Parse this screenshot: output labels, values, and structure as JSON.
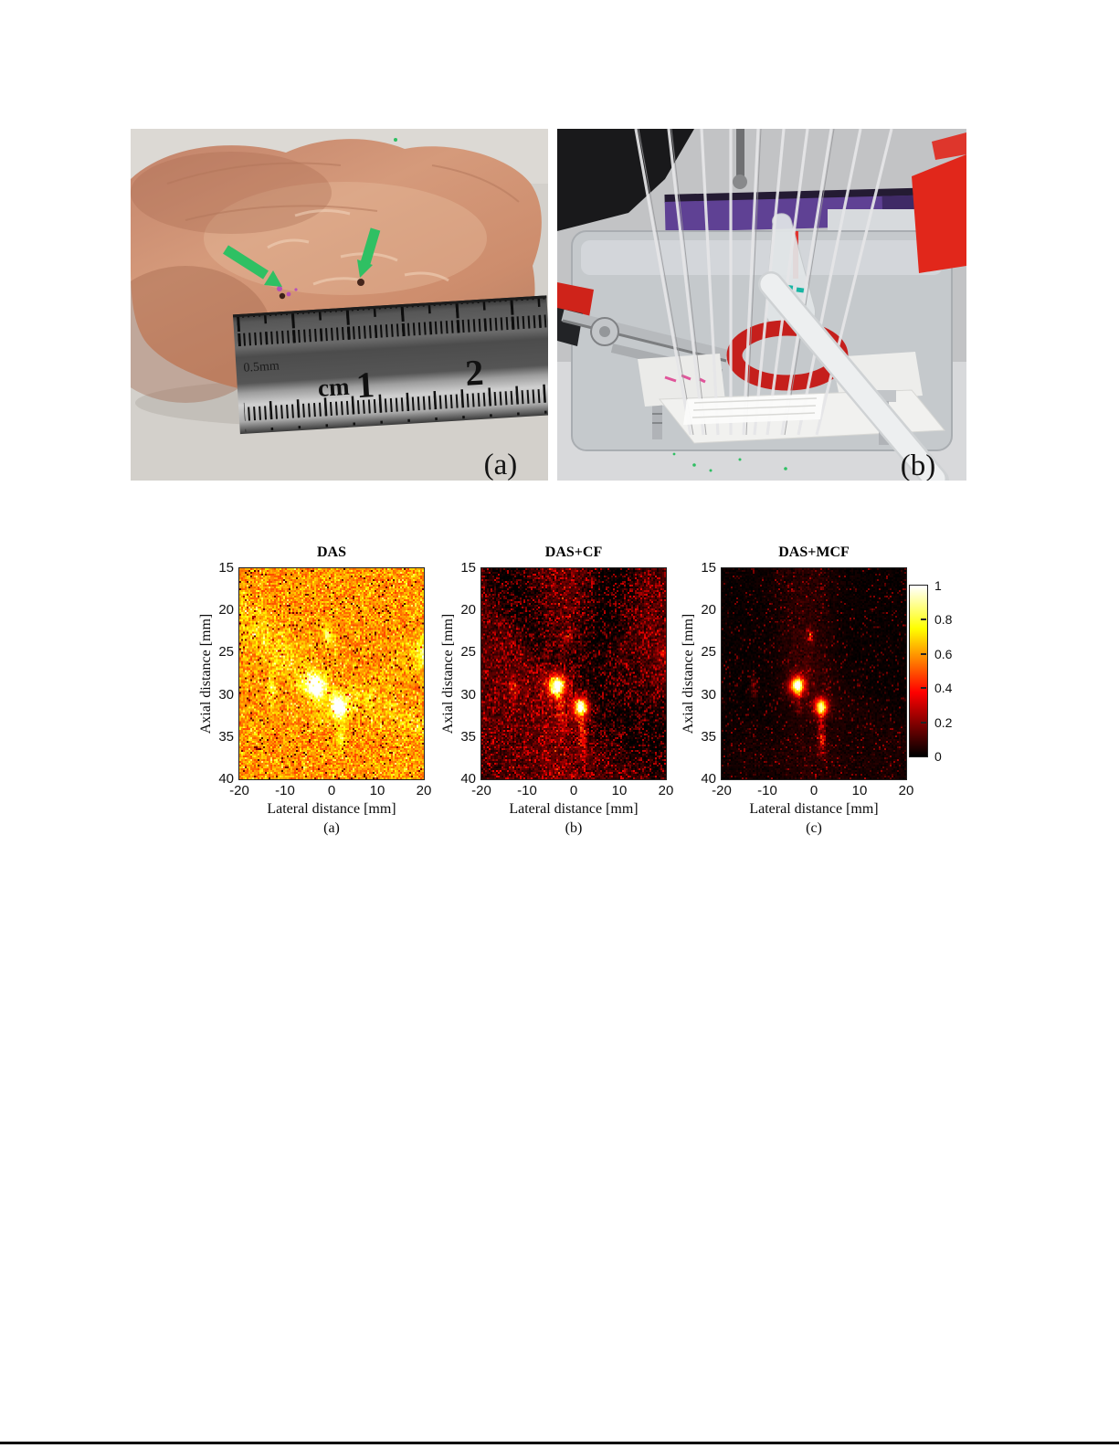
{
  "photos": {
    "a": {
      "label": "(a)"
    },
    "b": {
      "label": "(b)"
    }
  },
  "ruler": {
    "grad": "0.5mm",
    "unit": "cm",
    "n1": "1",
    "n2": "2"
  },
  "colorbar": {
    "min": 0,
    "max": 1,
    "ticks": [
      "1",
      "0.8",
      "0.6",
      "0.4",
      "0.2",
      "0"
    ]
  },
  "chart_data": [
    {
      "type": "heatmap",
      "title": "DAS",
      "sublabel": "(a)",
      "xlabel": "Lateral distance [mm]",
      "ylabel": "Axial distance [mm]",
      "xlim": [
        -20,
        20
      ],
      "ylim": [
        15,
        40
      ],
      "xticks": [
        -20,
        -10,
        0,
        10,
        20
      ],
      "yticks": [
        15,
        20,
        25,
        30,
        35,
        40
      ],
      "colormap": "hot",
      "seed": 11,
      "background": {
        "base": 0.58,
        "noise": 0.11,
        "sparkle": {
          "density": 0.22,
          "amp": 0.2
        },
        "dark": 0.04
      },
      "features": {
        "bands": [
          {
            "x1": -20,
            "y1": 19,
            "x2": -4.5,
            "y2": 28,
            "w": 1.5,
            "amp": 0.15,
            "speckle": true
          },
          {
            "x1": -20,
            "y1": 22,
            "x2": -5,
            "y2": 29.5,
            "w": 1.1,
            "amp": 0.09,
            "speckle": true
          },
          {
            "x1": -2,
            "y1": 30,
            "x2": 20,
            "y2": 33.5,
            "w": 1.4,
            "amp": 0.13,
            "speckle": true
          },
          {
            "x1": 2,
            "y1": 31,
            "x2": 20,
            "y2": 25.2,
            "w": 1.1,
            "amp": 0.08,
            "speckle": true
          },
          {
            "x1": -3.2,
            "y1": 29.5,
            "x2": -2.6,
            "y2": 33.5,
            "w": 0.7,
            "amp": 0.12,
            "speckle": true
          },
          {
            "x1": 1.6,
            "y1": 32,
            "x2": 2.2,
            "y2": 36.3,
            "w": 0.7,
            "amp": 0.13,
            "speckle": true
          }
        ],
        "blobs": [
          {
            "x": -3.5,
            "y": 28.9,
            "sx": 1.5,
            "sy": 1.0,
            "amp": 0.42
          },
          {
            "x": -3.5,
            "y": 28.9,
            "sx": 0.75,
            "sy": 0.5,
            "amp": 0.38
          },
          {
            "x": 1.6,
            "y": 31.4,
            "sx": 1.3,
            "sy": 0.95,
            "amp": 0.38
          },
          {
            "x": 1.6,
            "y": 31.4,
            "sx": 0.65,
            "sy": 0.48,
            "amp": 0.36
          },
          {
            "x": -0.9,
            "y": 23,
            "sx": 0.7,
            "sy": 0.75,
            "amp": 0.26
          },
          {
            "x": -13,
            "y": 29.3,
            "sx": 0.7,
            "sy": 1.2,
            "amp": 0.2
          },
          {
            "x": 20,
            "y": 25,
            "sx": 1.3,
            "sy": 1.3,
            "amp": 0.22
          },
          {
            "x": 2,
            "y": 35,
            "sx": 0.6,
            "sy": 0.8,
            "amp": 0.15
          }
        ]
      }
    },
    {
      "type": "heatmap",
      "title": "DAS+CF",
      "sublabel": "(b)",
      "xlabel": "Lateral distance [mm]",
      "ylabel": "Axial distance [mm]",
      "xlim": [
        -20,
        20
      ],
      "ylim": [
        15,
        40
      ],
      "xticks": [
        -20,
        -10,
        0,
        10,
        20
      ],
      "yticks": [
        15,
        20,
        25,
        30,
        35,
        40
      ],
      "colormap": "hot",
      "seed": 23,
      "background": {
        "base": 0.07,
        "noise": 0.06,
        "sparkle": {
          "density": 0.34,
          "amp": 0.26
        }
      },
      "features": {
        "bands": [
          {
            "x1": -4,
            "y1": 15,
            "x2": -3,
            "y2": 28,
            "w": 4.5,
            "amp": 0.13,
            "speckle": true
          },
          {
            "x1": 0,
            "y1": 30,
            "x2": -1,
            "y2": 40,
            "w": 5,
            "amp": 0.1,
            "speckle": true
          },
          {
            "x1": -20,
            "y1": 27,
            "x2": -6,
            "y2": 30,
            "w": 2.5,
            "amp": 0.08,
            "speckle": true
          },
          {
            "x1": 16,
            "y1": 19,
            "x2": 20,
            "y2": 27,
            "w": 3,
            "amp": 0.09,
            "speckle": true
          },
          {
            "x1": -20,
            "y1": 34,
            "x2": -4,
            "y2": 40,
            "w": 4,
            "amp": 0.06,
            "speckle": true
          },
          {
            "x1": -20,
            "y1": 19.5,
            "x2": -5,
            "y2": 28.5,
            "w": 1.1,
            "amp": 0.09,
            "speckle": true
          },
          {
            "x1": -3.2,
            "y1": 29.8,
            "x2": -2.6,
            "y2": 33.8,
            "w": 0.6,
            "amp": 0.3,
            "speckle": true
          },
          {
            "x1": 1.6,
            "y1": 32.2,
            "x2": 2.1,
            "y2": 36.6,
            "w": 0.6,
            "amp": 0.32,
            "speckle": true
          },
          {
            "x1": -14,
            "y1": 15,
            "x2": -4.5,
            "y2": 27,
            "w": 3.2,
            "amp": -0.09
          },
          {
            "x1": 9,
            "y1": 16,
            "x2": 1.5,
            "y2": 28,
            "w": 3.2,
            "amp": -0.09
          },
          {
            "x1": 5,
            "y1": 31.5,
            "x2": 19,
            "y2": 35,
            "w": 3,
            "amp": -0.08
          }
        ],
        "blobs": [
          {
            "x": -3.6,
            "y": 28.9,
            "sx": 2.0,
            "sy": 1.3,
            "amp": 0.25
          },
          {
            "x": -3.6,
            "y": 28.9,
            "sx": 1.0,
            "sy": 0.7,
            "amp": 0.75
          },
          {
            "x": 1.6,
            "y": 31.4,
            "sx": 1.8,
            "sy": 1.2,
            "amp": 0.22
          },
          {
            "x": 1.6,
            "y": 31.4,
            "sx": 0.95,
            "sy": 0.65,
            "amp": 0.72
          },
          {
            "x": -0.9,
            "y": 23,
            "sx": 0.6,
            "sy": 0.65,
            "amp": 0.4,
            "speckle": true
          },
          {
            "x": -13,
            "y": 29.2,
            "sx": 0.6,
            "sy": 1.1,
            "amp": 0.38,
            "speckle": true
          },
          {
            "x": 20,
            "y": 25.3,
            "sx": 1.1,
            "sy": 1.1,
            "amp": 0.3,
            "speckle": true
          },
          {
            "x": 2,
            "y": 35,
            "sx": 0.55,
            "sy": 0.75,
            "amp": 0.26,
            "speckle": true
          }
        ]
      }
    },
    {
      "type": "heatmap",
      "title": "DAS+MCF",
      "sublabel": "(c)",
      "xlabel": "Lateral distance [mm]",
      "ylabel": "Axial distance [mm]",
      "xlim": [
        -20,
        20
      ],
      "ylim": [
        15,
        40
      ],
      "xticks": [
        -20,
        -10,
        0,
        10,
        20
      ],
      "yticks": [
        15,
        20,
        25,
        30,
        35,
        40
      ],
      "colormap": "hot",
      "seed": 37,
      "background": {
        "base": 0.012,
        "noise": 0.018,
        "sparkle": {
          "density": 0.1,
          "amp": 0.2
        }
      },
      "features": {
        "bands": [
          {
            "x1": -5,
            "y1": 15,
            "x2": -3,
            "y2": 27,
            "w": 3.5,
            "amp": 0.07,
            "speckle": true
          },
          {
            "x1": 1,
            "y1": 15,
            "x2": -1,
            "y2": 27,
            "w": 3,
            "amp": 0.06,
            "speckle": true
          },
          {
            "x1": 0,
            "y1": 31,
            "x2": 0,
            "y2": 40,
            "w": 4.5,
            "amp": 0.05,
            "speckle": true
          },
          {
            "x1": -16,
            "y1": 37,
            "x2": 16,
            "y2": 39,
            "w": 2.5,
            "amp": 0.04,
            "speckle": true
          },
          {
            "x1": 6,
            "y1": 31,
            "x2": 20,
            "y2": 36,
            "w": 2,
            "amp": 0.04,
            "speckle": true
          },
          {
            "x1": 1.6,
            "y1": 32.3,
            "x2": 1.8,
            "y2": 36.8,
            "w": 0.55,
            "amp": 0.3,
            "speckle": true
          },
          {
            "x1": -3.2,
            "y1": 29.9,
            "x2": -3,
            "y2": 31.6,
            "w": 0.5,
            "amp": 0.2,
            "speckle": true
          }
        ],
        "blobs": [
          {
            "x": -3.6,
            "y": 28.9,
            "sx": 1.7,
            "sy": 1.1,
            "amp": 0.2,
            "speckle": true
          },
          {
            "x": -3.6,
            "y": 28.9,
            "sx": 1.0,
            "sy": 0.68,
            "amp": 0.8
          },
          {
            "x": -3.6,
            "y": 28.9,
            "sx": 0.5,
            "sy": 0.4,
            "amp": 0.25
          },
          {
            "x": 1.6,
            "y": 31.4,
            "sx": 1.5,
            "sy": 1.0,
            "amp": 0.18,
            "speckle": true
          },
          {
            "x": 1.6,
            "y": 31.4,
            "sx": 0.9,
            "sy": 0.62,
            "amp": 0.78
          },
          {
            "x": -0.9,
            "y": 23,
            "sx": 0.55,
            "sy": 0.6,
            "amp": 0.45,
            "speckle": true
          },
          {
            "x": -13,
            "y": 29.2,
            "sx": 0.5,
            "sy": 0.9,
            "amp": 0.22,
            "speckle": true
          },
          {
            "x": 1.6,
            "y": 35.2,
            "sx": 0.5,
            "sy": 0.7,
            "amp": 0.25,
            "speckle": true
          }
        ]
      }
    }
  ]
}
